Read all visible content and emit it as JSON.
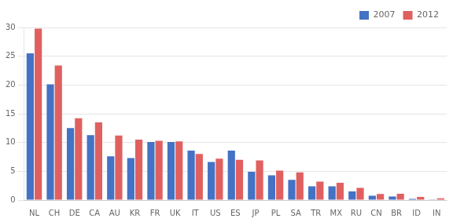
{
  "chart_data": {
    "type": "bar",
    "categories": [
      "NL",
      "CH",
      "DE",
      "CA",
      "AU",
      "KR",
      "FR",
      "UK",
      "IT",
      "US",
      "ES",
      "JP",
      "PL",
      "SA",
      "TR",
      "MX",
      "RU",
      "CN",
      "BR",
      "ID",
      "IN"
    ],
    "series": [
      {
        "name": "2007",
        "color": "#4472c4",
        "values": [
          25.5,
          20.1,
          12.5,
          11.3,
          7.6,
          7.3,
          10.1,
          10.1,
          8.6,
          6.6,
          8.6,
          4.9,
          4.3,
          3.5,
          2.4,
          2.4,
          1.5,
          0.75,
          0.6,
          0.2,
          0.1
        ]
      },
      {
        "name": "2012",
        "color": "#e06060",
        "values": [
          29.8,
          23.4,
          14.2,
          13.5,
          11.2,
          10.5,
          10.3,
          10.2,
          8.0,
          7.2,
          7.0,
          6.9,
          5.1,
          4.8,
          3.2,
          3.0,
          2.1,
          1.05,
          1.1,
          0.55,
          0.3
        ]
      }
    ],
    "ylim": [
      0,
      30
    ],
    "yticks": [
      0,
      5,
      10,
      15,
      20,
      25,
      30
    ],
    "grid": true,
    "legend": "upper right"
  }
}
